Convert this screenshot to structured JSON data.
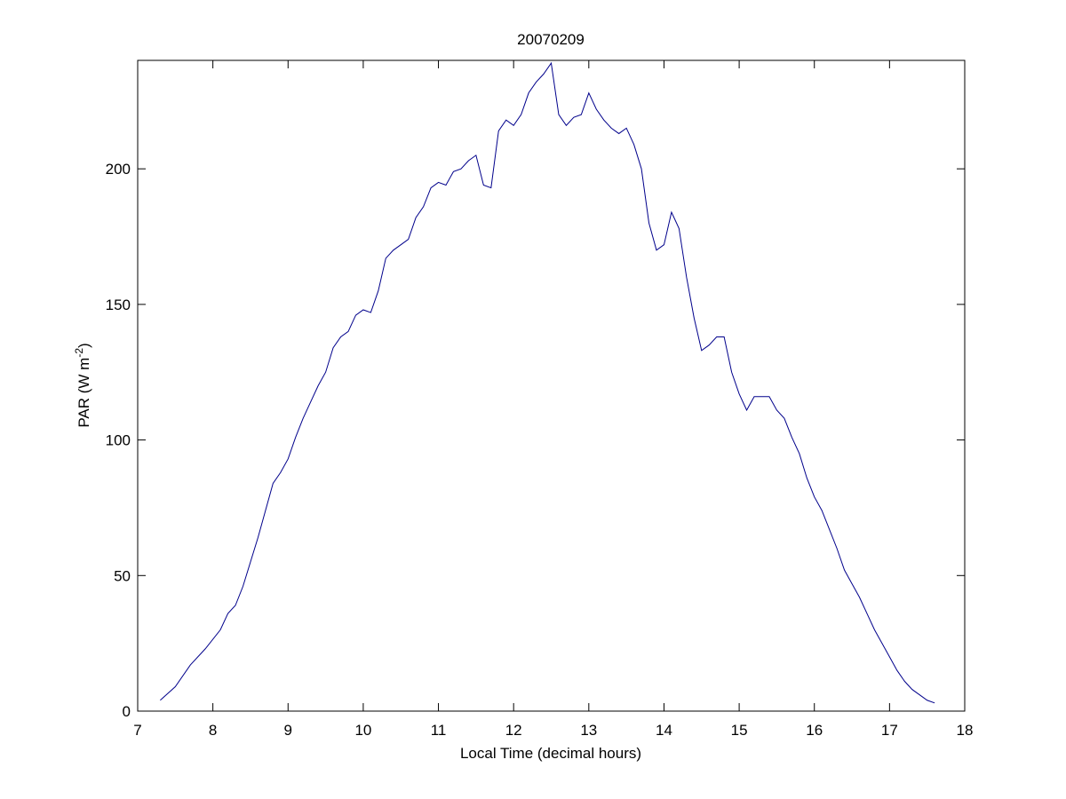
{
  "chart_data": {
    "type": "line",
    "title": "20070209",
    "xlabel": "Local Time (decimal hours)",
    "ylabel": [
      "PAR (W m",
      "-2",
      ")"
    ],
    "color": "#00008b",
    "x": [
      7.3,
      7.5,
      7.7,
      7.9,
      8.1,
      8.2,
      8.3,
      8.4,
      8.5,
      8.6,
      8.7,
      8.8,
      8.9,
      9.0,
      9.1,
      9.2,
      9.3,
      9.4,
      9.5,
      9.6,
      9.7,
      9.8,
      9.9,
      10.0,
      10.1,
      10.2,
      10.3,
      10.4,
      10.5,
      10.6,
      10.7,
      10.8,
      10.9,
      11.0,
      11.1,
      11.2,
      11.3,
      11.4,
      11.5,
      11.6,
      11.7,
      11.8,
      11.9,
      12.0,
      12.1,
      12.2,
      12.3,
      12.4,
      12.5,
      12.6,
      12.7,
      12.8,
      12.9,
      13.0,
      13.1,
      13.2,
      13.3,
      13.4,
      13.5,
      13.6,
      13.7,
      13.8,
      13.9,
      14.0,
      14.1,
      14.2,
      14.3,
      14.4,
      14.5,
      14.6,
      14.7,
      14.8,
      14.9,
      15.0,
      15.1,
      15.2,
      15.3,
      15.4,
      15.5,
      15.6,
      15.7,
      15.8,
      15.9,
      16.0,
      16.1,
      16.2,
      16.3,
      16.4,
      16.5,
      16.6,
      16.7,
      16.8,
      16.9,
      17.0,
      17.1,
      17.2,
      17.3,
      17.4,
      17.5,
      17.6
    ],
    "values": [
      4,
      9,
      17,
      23,
      30,
      36,
      39,
      46,
      55,
      64,
      74,
      84,
      88,
      93,
      101,
      108,
      114,
      120,
      125,
      134,
      138,
      140,
      146,
      148,
      147,
      155,
      167,
      170,
      172,
      174,
      182,
      186,
      193,
      195,
      194,
      199,
      200,
      203,
      205,
      194,
      193,
      214,
      218,
      216,
      220,
      228,
      232,
      235,
      239,
      220,
      216,
      219,
      220,
      228,
      222,
      218,
      215,
      213,
      215,
      209,
      200,
      180,
      170,
      172,
      184,
      178,
      160,
      145,
      133,
      135,
      138,
      138,
      125,
      117,
      111,
      116,
      116,
      116,
      111,
      108,
      101,
      95,
      86,
      79,
      74,
      67,
      60,
      52,
      47,
      42,
      36,
      30,
      25,
      20,
      15,
      11,
      8,
      6,
      4,
      3
    ],
    "xlim": [
      7,
      18
    ],
    "xticks": [
      7,
      8,
      9,
      10,
      11,
      12,
      13,
      14,
      15,
      16,
      17,
      18
    ],
    "ylim": [
      0,
      240
    ],
    "yticks": [
      0,
      50,
      100,
      150,
      200
    ]
  }
}
